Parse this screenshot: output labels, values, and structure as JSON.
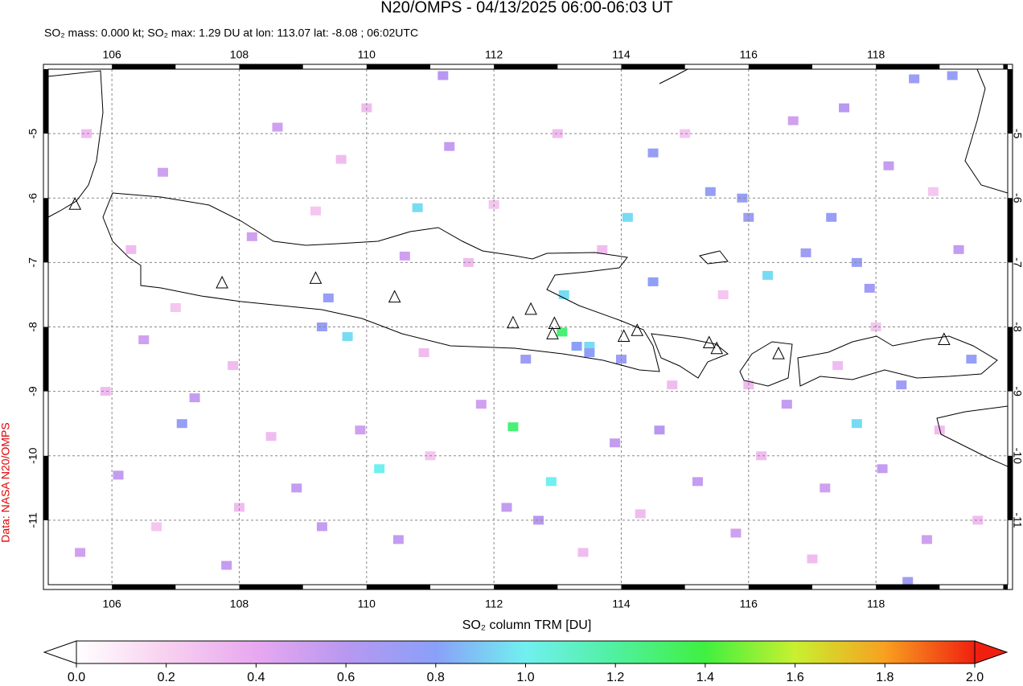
{
  "title": "N20/OMPS - 04/13/2025 06:00-06:03 UT",
  "subtitle": "SO₂ mass: 0.000 kt; SO₂ max: 1.29 DU at lon: 113.07 lat: -8.08 ; 06:02UTC",
  "credit": "Data: NASA N20/OMPS",
  "map": {
    "xlim": [
      105,
      120.07
    ],
    "ylim": [
      -12,
      -4
    ],
    "xticks": [
      106,
      108,
      110,
      112,
      114,
      116,
      118
    ],
    "yticks": [
      -5,
      -6,
      -7,
      -8,
      -9,
      -10,
      -11
    ],
    "volcanoes": [
      [
        105.42,
        -6.1
      ],
      [
        107.73,
        -7.32
      ],
      [
        109.2,
        -7.25
      ],
      [
        110.44,
        -7.54
      ],
      [
        112.3,
        -7.94
      ],
      [
        112.58,
        -7.73
      ],
      [
        112.95,
        -7.95
      ],
      [
        112.92,
        -8.11
      ],
      [
        114.04,
        -8.15
      ],
      [
        114.25,
        -8.06
      ],
      [
        115.38,
        -8.25
      ],
      [
        115.5,
        -8.34
      ],
      [
        116.47,
        -8.42
      ],
      [
        119.07,
        -8.2
      ]
    ],
    "pixels": [
      [
        110.8,
        -6.15,
        0.95
      ],
      [
        114.1,
        -6.3,
        0.95
      ],
      [
        113.5,
        -8.3,
        0.95
      ],
      [
        109.7,
        -8.15,
        0.95
      ],
      [
        110.2,
        -10.2,
        1.0
      ],
      [
        116.3,
        -7.2,
        0.95
      ],
      [
        117.7,
        -9.5,
        0.95
      ],
      [
        113.1,
        -7.5,
        0.95
      ],
      [
        113.07,
        -8.08,
        1.29
      ],
      [
        112.3,
        -9.55,
        1.29
      ],
      [
        112.9,
        -10.4,
        1.0
      ],
      [
        109.4,
        -7.55,
        0.75
      ],
      [
        109.3,
        -8.0,
        0.75
      ],
      [
        114.5,
        -5.3,
        0.75
      ],
      [
        115.9,
        -6.0,
        0.75
      ],
      [
        117.3,
        -6.3,
        0.75
      ],
      [
        117.7,
        -7.0,
        0.75
      ],
      [
        119.2,
        -4.1,
        0.75
      ],
      [
        118.6,
        -4.15,
        0.72
      ],
      [
        115.4,
        -5.9,
        0.75
      ],
      [
        116.0,
        -6.3,
        0.72
      ],
      [
        114.5,
        -7.3,
        0.78
      ],
      [
        113.5,
        -8.4,
        0.78
      ],
      [
        118.5,
        -11.95,
        0.7
      ],
      [
        107.1,
        -9.5,
        0.75
      ],
      [
        112.5,
        -8.5,
        0.72
      ],
      [
        114.0,
        -8.5,
        0.72
      ],
      [
        113.3,
        -8.3,
        0.8
      ],
      [
        116.9,
        -6.85,
        0.7
      ],
      [
        117.9,
        -7.4,
        0.7
      ],
      [
        118.4,
        -8.9,
        0.7
      ],
      [
        119.5,
        -8.5,
        0.75
      ],
      [
        106.5,
        -8.2,
        0.5
      ],
      [
        107.3,
        -9.1,
        0.55
      ],
      [
        108.2,
        -6.6,
        0.5
      ],
      [
        108.9,
        -10.5,
        0.55
      ],
      [
        109.9,
        -9.6,
        0.5
      ],
      [
        110.5,
        -11.3,
        0.55
      ],
      [
        111.3,
        -5.2,
        0.55
      ],
      [
        111.2,
        -4.1,
        0.6
      ],
      [
        111.8,
        -9.2,
        0.5
      ],
      [
        112.2,
        -10.8,
        0.55
      ],
      [
        112.7,
        -11.0,
        0.6
      ],
      [
        113.9,
        -9.8,
        0.55
      ],
      [
        114.6,
        -9.6,
        0.6
      ],
      [
        115.2,
        -10.4,
        0.55
      ],
      [
        115.8,
        -11.2,
        0.5
      ],
      [
        116.6,
        -9.2,
        0.55
      ],
      [
        117.2,
        -10.5,
        0.5
      ],
      [
        118.1,
        -10.2,
        0.55
      ],
      [
        118.8,
        -11.3,
        0.5
      ],
      [
        119.3,
        -6.8,
        0.55
      ],
      [
        118.2,
        -5.5,
        0.55
      ],
      [
        117.5,
        -4.6,
        0.6
      ],
      [
        116.7,
        -4.8,
        0.5
      ],
      [
        106.1,
        -10.3,
        0.55
      ],
      [
        105.5,
        -11.5,
        0.5
      ],
      [
        107.8,
        -11.7,
        0.55
      ],
      [
        109.3,
        -11.1,
        0.55
      ],
      [
        110.6,
        -6.9,
        0.5
      ],
      [
        106.8,
        -5.6,
        0.5
      ],
      [
        108.6,
        -4.9,
        0.5
      ],
      [
        105.6,
        -5.0,
        0.3
      ],
      [
        106.3,
        -6.8,
        0.3
      ],
      [
        107.0,
        -7.7,
        0.25
      ],
      [
        107.9,
        -8.6,
        0.3
      ],
      [
        108.5,
        -9.7,
        0.3
      ],
      [
        109.2,
        -6.2,
        0.25
      ],
      [
        110.0,
        -4.6,
        0.3
      ],
      [
        110.9,
        -8.4,
        0.3
      ],
      [
        111.6,
        -7.0,
        0.3
      ],
      [
        112.0,
        -6.1,
        0.25
      ],
      [
        113.0,
        -5.0,
        0.3
      ],
      [
        113.7,
        -6.8,
        0.3
      ],
      [
        114.8,
        -8.9,
        0.3
      ],
      [
        115.6,
        -7.5,
        0.25
      ],
      [
        116.2,
        -10.0,
        0.3
      ],
      [
        117.0,
        -11.6,
        0.3
      ],
      [
        118.0,
        -8.0,
        0.25
      ],
      [
        119.0,
        -9.6,
        0.3
      ],
      [
        119.6,
        -11.0,
        0.3
      ],
      [
        105.9,
        -9.0,
        0.3
      ],
      [
        106.7,
        -11.1,
        0.25
      ],
      [
        108.0,
        -10.8,
        0.3
      ],
      [
        109.6,
        -5.4,
        0.3
      ],
      [
        111.0,
        -10.0,
        0.25
      ],
      [
        113.4,
        -11.5,
        0.3
      ],
      [
        114.3,
        -10.9,
        0.3
      ],
      [
        115.0,
        -5.0,
        0.25
      ],
      [
        116.0,
        -8.9,
        0.3
      ],
      [
        117.4,
        -8.6,
        0.3
      ],
      [
        118.9,
        -5.9,
        0.25
      ]
    ]
  },
  "colorbar": {
    "label": "SO₂ column TRM [DU]",
    "range": [
      0,
      2
    ],
    "colors": [
      "#ffffff",
      "#f8d0f0",
      "#e8a8f0",
      "#b898f0",
      "#8aa0f8",
      "#70f0f0",
      "#50f0a0",
      "#40f040",
      "#c8f030",
      "#f8a020",
      "#f02010"
    ],
    "ticks": [
      {
        "value": 0,
        "label": "0.0"
      },
      {
        "value": 0.2,
        "label": "0.2"
      },
      {
        "value": 0.4,
        "label": "0.4"
      },
      {
        "value": 0.6,
        "label": "0.6"
      },
      {
        "value": 0.8,
        "label": "0.8"
      },
      {
        "value": 1,
        "label": "1.0"
      },
      {
        "value": 1.2,
        "label": "1.2"
      },
      {
        "value": 1.4,
        "label": "1.4"
      },
      {
        "value": 1.6,
        "label": "1.6"
      },
      {
        "value": 1.8,
        "label": "1.8"
      },
      {
        "value": 2,
        "label": "2.0"
      }
    ]
  }
}
